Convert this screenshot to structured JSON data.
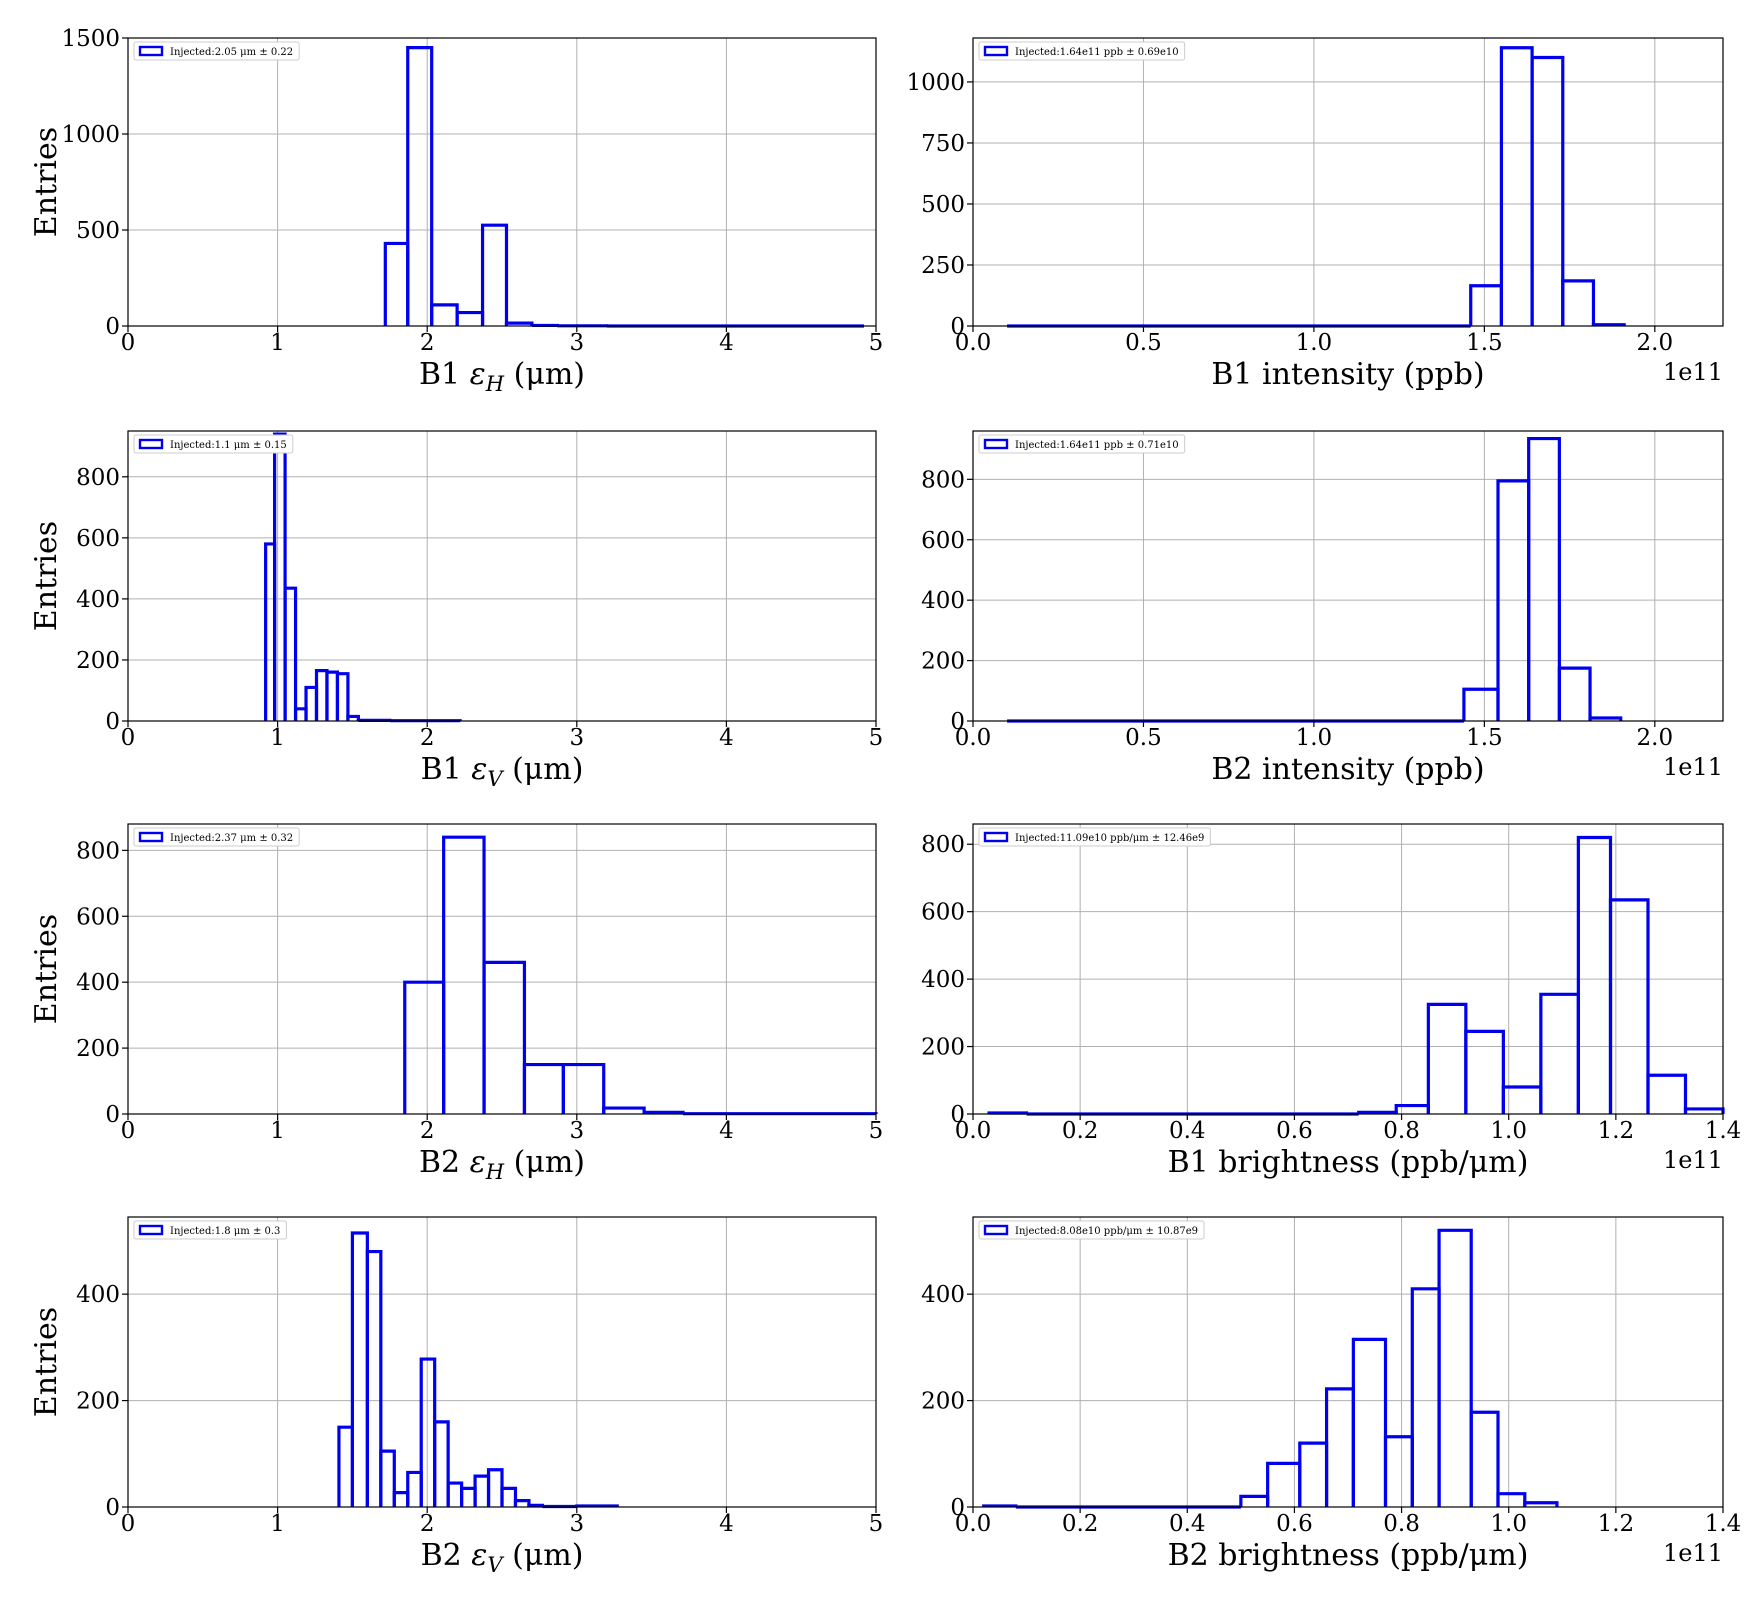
{
  "chart_data": [
    {
      "type": "histogram",
      "xlabel": "B1 ε_H (μm)",
      "ylabel": "Entries",
      "xlim": [
        0,
        5
      ],
      "ylim": [
        0,
        1500
      ],
      "xticks": [
        0,
        1,
        2,
        3,
        4,
        5
      ],
      "xtick_labels": [
        "0",
        "1",
        "2",
        "3",
        "4",
        "5"
      ],
      "yticks": [
        0,
        500,
        1000,
        1500
      ],
      "ytick_labels": [
        "0",
        "500",
        "1000",
        "1500"
      ],
      "offset_text": "",
      "grid": true,
      "legend_position": "upper-left",
      "series": [
        {
          "name": "Injected:2.05 μm ± 0.22",
          "color": "#0000ee",
          "bins": [
            [
              1.72,
              1.87,
              430
            ],
            [
              1.87,
              2.03,
              1450
            ],
            [
              2.03,
              2.2,
              110
            ],
            [
              2.2,
              2.37,
              70
            ],
            [
              2.37,
              2.53,
              525
            ],
            [
              2.53,
              2.7,
              15
            ],
            [
              2.7,
              2.87,
              3
            ],
            [
              2.87,
              3.2,
              1
            ],
            [
              3.2,
              4.92,
              0
            ]
          ]
        }
      ]
    },
    {
      "type": "histogram",
      "xlabel": "B1 intensity (ppb)",
      "ylabel": "",
      "xlim": [
        0,
        2.2
      ],
      "ylim": [
        0,
        1180
      ],
      "xticks": [
        0,
        0.5,
        1.0,
        1.5,
        2.0
      ],
      "xtick_labels": [
        "0.0",
        "0.5",
        "1.0",
        "1.5",
        "2.0"
      ],
      "yticks": [
        0,
        250,
        500,
        750,
        1000
      ],
      "ytick_labels": [
        "0",
        "250",
        "500",
        "750",
        "1000"
      ],
      "offset_text": "1e11",
      "grid": true,
      "legend_position": "upper-left",
      "series": [
        {
          "name": "Injected:1.64e11 ppb ± 0.69e10",
          "color": "#0000ee",
          "bins": [
            [
              0.1,
              1.46,
              0
            ],
            [
              1.46,
              1.55,
              165
            ],
            [
              1.55,
              1.64,
              1140
            ],
            [
              1.64,
              1.73,
              1100
            ],
            [
              1.73,
              1.82,
              185
            ],
            [
              1.82,
              1.91,
              5
            ]
          ]
        }
      ]
    },
    {
      "type": "histogram",
      "xlabel": "B1 ε_V (μm)",
      "ylabel": "Entries",
      "xlim": [
        0,
        5
      ],
      "ylim": [
        0,
        950
      ],
      "xticks": [
        0,
        1,
        2,
        3,
        4,
        5
      ],
      "xtick_labels": [
        "0",
        "1",
        "2",
        "3",
        "4",
        "5"
      ],
      "yticks": [
        0,
        200,
        400,
        600,
        800
      ],
      "ytick_labels": [
        "0",
        "200",
        "400",
        "600",
        "800"
      ],
      "offset_text": "",
      "grid": true,
      "legend_position": "upper-left",
      "series": [
        {
          "name": "Injected:1.1 μm ± 0.15",
          "color": "#0000ee",
          "bins": [
            [
              0.92,
              0.98,
              580
            ],
            [
              0.98,
              1.05,
              940
            ],
            [
              1.05,
              1.12,
              435
            ],
            [
              1.12,
              1.19,
              40
            ],
            [
              1.19,
              1.26,
              110
            ],
            [
              1.26,
              1.33,
              165
            ],
            [
              1.33,
              1.4,
              160
            ],
            [
              1.4,
              1.47,
              155
            ],
            [
              1.47,
              1.54,
              15
            ],
            [
              1.54,
              1.75,
              2
            ],
            [
              1.75,
              2.22,
              1
            ]
          ]
        }
      ]
    },
    {
      "type": "histogram",
      "xlabel": "B2 intensity (ppb)",
      "ylabel": "",
      "xlim": [
        0,
        2.2
      ],
      "ylim": [
        0,
        960
      ],
      "xticks": [
        0,
        0.5,
        1.0,
        1.5,
        2.0
      ],
      "xtick_labels": [
        "0.0",
        "0.5",
        "1.0",
        "1.5",
        "2.0"
      ],
      "yticks": [
        0,
        200,
        400,
        600,
        800
      ],
      "ytick_labels": [
        "0",
        "200",
        "400",
        "600",
        "800"
      ],
      "offset_text": "1e11",
      "grid": true,
      "legend_position": "upper-left",
      "series": [
        {
          "name": "Injected:1.64e11 ppb ± 0.71e10",
          "color": "#0000ee",
          "bins": [
            [
              0.1,
              1.44,
              0
            ],
            [
              1.44,
              1.54,
              105
            ],
            [
              1.54,
              1.63,
              795
            ],
            [
              1.63,
              1.72,
              935
            ],
            [
              1.72,
              1.81,
              175
            ],
            [
              1.81,
              1.9,
              10
            ]
          ]
        }
      ]
    },
    {
      "type": "histogram",
      "xlabel": "B2 ε_H (μm)",
      "ylabel": "Entries",
      "xlim": [
        0,
        5
      ],
      "ylim": [
        0,
        880
      ],
      "xticks": [
        0,
        1,
        2,
        3,
        4,
        5
      ],
      "xtick_labels": [
        "0",
        "1",
        "2",
        "3",
        "4",
        "5"
      ],
      "yticks": [
        0,
        200,
        400,
        600,
        800
      ],
      "ytick_labels": [
        "0",
        "200",
        "400",
        "600",
        "800"
      ],
      "offset_text": "",
      "grid": true,
      "legend_position": "upper-left",
      "series": [
        {
          "name": "Injected:2.37 μm ± 0.32",
          "color": "#0000ee",
          "bins": [
            [
              1.85,
              2.11,
              400
            ],
            [
              2.11,
              2.38,
              840
            ],
            [
              2.38,
              2.65,
              460
            ],
            [
              2.65,
              2.91,
              150
            ],
            [
              2.91,
              3.18,
              150
            ],
            [
              3.18,
              3.45,
              18
            ],
            [
              3.45,
              3.71,
              5
            ],
            [
              3.71,
              5.0,
              1
            ]
          ]
        }
      ]
    },
    {
      "type": "histogram",
      "xlabel": "B1 brightness (ppb/μm)",
      "ylabel": "",
      "xlim": [
        0,
        1.4
      ],
      "ylim": [
        0,
        860
      ],
      "xticks": [
        0,
        0.2,
        0.4,
        0.6,
        0.8,
        1.0,
        1.2,
        1.4
      ],
      "xtick_labels": [
        "0.0",
        "0.2",
        "0.4",
        "0.6",
        "0.8",
        "1.0",
        "1.2",
        "1.4"
      ],
      "yticks": [
        0,
        200,
        400,
        600,
        800
      ],
      "ytick_labels": [
        "0",
        "200",
        "400",
        "600",
        "800"
      ],
      "offset_text": "1e11",
      "grid": true,
      "legend_position": "upper-left",
      "series": [
        {
          "name": "Injected:11.09e10 ppb/μm ± 12.46e9",
          "color": "#0000ee",
          "bins": [
            [
              0.03,
              0.1,
              3
            ],
            [
              0.1,
              0.72,
              0
            ],
            [
              0.72,
              0.79,
              5
            ],
            [
              0.79,
              0.85,
              25
            ],
            [
              0.85,
              0.92,
              325
            ],
            [
              0.92,
              0.99,
              245
            ],
            [
              0.99,
              1.06,
              80
            ],
            [
              1.06,
              1.13,
              355
            ],
            [
              1.13,
              1.19,
              820
            ],
            [
              1.19,
              1.26,
              635
            ],
            [
              1.26,
              1.33,
              115
            ],
            [
              1.33,
              1.4,
              15
            ]
          ]
        }
      ]
    },
    {
      "type": "histogram",
      "xlabel": "B2 ε_V (μm)",
      "ylabel": "Entries",
      "xlim": [
        0,
        5
      ],
      "ylim": [
        0,
        545
      ],
      "xticks": [
        0,
        1,
        2,
        3,
        4,
        5
      ],
      "xtick_labels": [
        "0",
        "1",
        "2",
        "3",
        "4",
        "5"
      ],
      "yticks": [
        0,
        200,
        400
      ],
      "ytick_labels": [
        "0",
        "200",
        "400"
      ],
      "offset_text": "",
      "grid": true,
      "legend_position": "upper-left",
      "series": [
        {
          "name": "Injected:1.8 μm ± 0.3",
          "color": "#0000ee",
          "bins": [
            [
              1.41,
              1.5,
              150
            ],
            [
              1.5,
              1.6,
              515
            ],
            [
              1.6,
              1.69,
              480
            ],
            [
              1.69,
              1.78,
              105
            ],
            [
              1.78,
              1.87,
              27
            ],
            [
              1.87,
              1.96,
              65
            ],
            [
              1.96,
              2.05,
              278
            ],
            [
              2.05,
              2.14,
              160
            ],
            [
              2.14,
              2.23,
              45
            ],
            [
              2.23,
              2.32,
              35
            ],
            [
              2.32,
              2.41,
              58
            ],
            [
              2.41,
              2.5,
              70
            ],
            [
              2.5,
              2.59,
              35
            ],
            [
              2.59,
              2.68,
              12
            ],
            [
              2.68,
              2.77,
              3
            ],
            [
              2.77,
              3.0,
              1
            ],
            [
              3.0,
              3.27,
              2
            ]
          ]
        }
      ]
    },
    {
      "type": "histogram",
      "xlabel": "B2 brightness (ppb/μm)",
      "ylabel": "",
      "xlim": [
        0,
        1.4
      ],
      "ylim": [
        0,
        545
      ],
      "xticks": [
        0,
        0.2,
        0.4,
        0.6,
        0.8,
        1.0,
        1.2,
        1.4
      ],
      "xtick_labels": [
        "0.0",
        "0.2",
        "0.4",
        "0.6",
        "0.8",
        "1.0",
        "1.2",
        "1.4"
      ],
      "yticks": [
        0,
        200,
        400
      ],
      "ytick_labels": [
        "0",
        "200",
        "400"
      ],
      "offset_text": "1e11",
      "grid": true,
      "legend_position": "upper-left",
      "series": [
        {
          "name": "Injected:8.08e10 ppb/μm ± 10.87e9",
          "color": "#0000ee",
          "bins": [
            [
              0.02,
              0.08,
              2
            ],
            [
              0.08,
              0.5,
              0
            ],
            [
              0.5,
              0.55,
              20
            ],
            [
              0.55,
              0.61,
              82
            ],
            [
              0.61,
              0.66,
              120
            ],
            [
              0.66,
              0.71,
              222
            ],
            [
              0.71,
              0.77,
              315
            ],
            [
              0.77,
              0.82,
              132
            ],
            [
              0.82,
              0.87,
              410
            ],
            [
              0.87,
              0.93,
              520
            ],
            [
              0.93,
              0.98,
              178
            ],
            [
              0.98,
              1.03,
              25
            ],
            [
              1.03,
              1.09,
              8
            ]
          ]
        }
      ]
    }
  ]
}
